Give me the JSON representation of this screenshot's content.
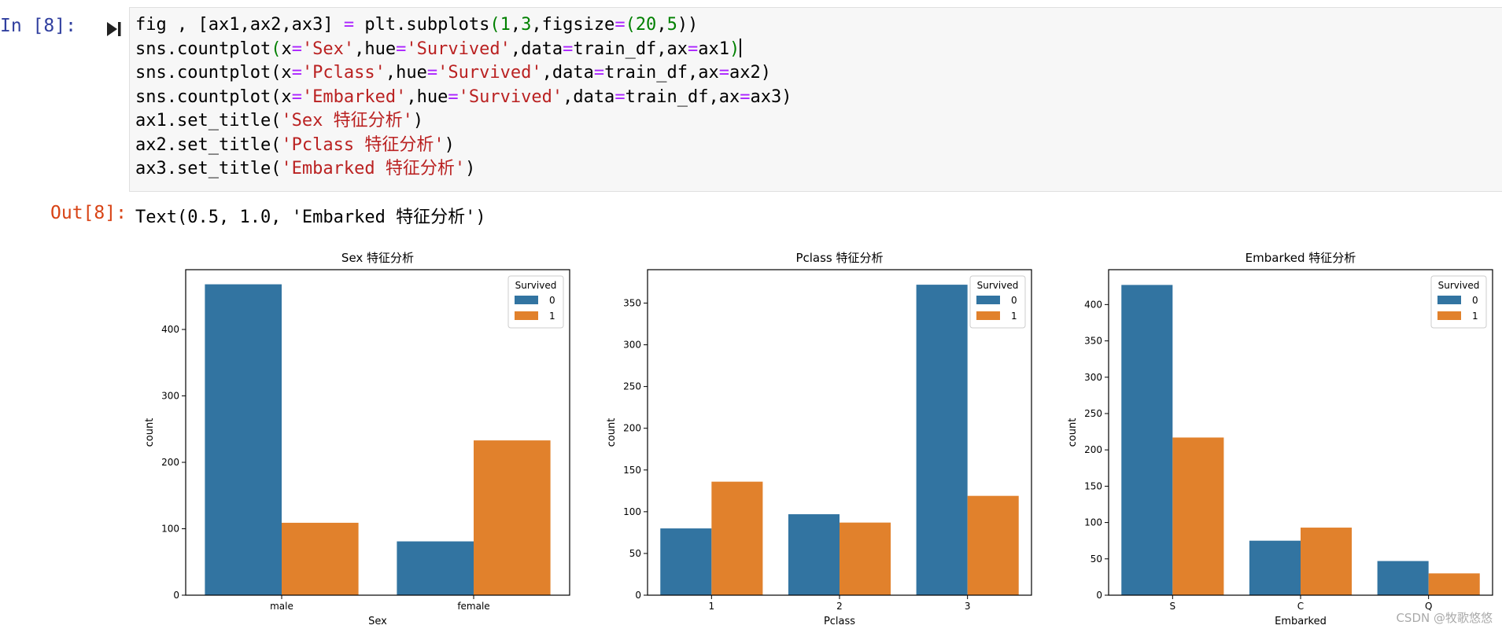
{
  "cell": {
    "in_prompt": "In  [8]:",
    "out_prompt": "Out[8]:",
    "output_text": "Text(0.5, 1.0, 'Embarked 特征分析')",
    "code_lines": [
      [
        {
          "t": "fig , [ax1,ax2,ax3] "
        },
        {
          "t": "=",
          "c": "op"
        },
        {
          "t": " plt.subplots"
        },
        {
          "t": "(",
          "c": "paren"
        },
        {
          "t": "1",
          "c": "num"
        },
        {
          "t": ","
        },
        {
          "t": "3",
          "c": "num"
        },
        {
          "t": ",figsize"
        },
        {
          "t": "=",
          "c": "op"
        },
        {
          "t": "(",
          "c": "paren"
        },
        {
          "t": "20",
          "c": "num"
        },
        {
          "t": ","
        },
        {
          "t": "5",
          "c": "num"
        },
        {
          "t": "))"
        }
      ],
      [
        {
          "t": "sns.countplot"
        },
        {
          "t": "(",
          "c": "paren"
        },
        {
          "t": "x"
        },
        {
          "t": "=",
          "c": "op"
        },
        {
          "t": "'Sex'",
          "c": "str"
        },
        {
          "t": ",hue"
        },
        {
          "t": "=",
          "c": "op"
        },
        {
          "t": "'Survived'",
          "c": "str"
        },
        {
          "t": ",data"
        },
        {
          "t": "=",
          "c": "op"
        },
        {
          "t": "train_df,ax"
        },
        {
          "t": "=",
          "c": "op"
        },
        {
          "t": "ax1"
        },
        {
          "t": ")",
          "c": "paren"
        }
      ],
      [
        {
          "t": "sns.countplot"
        },
        {
          "t": "(x"
        },
        {
          "t": "=",
          "c": "op"
        },
        {
          "t": "'Pclass'",
          "c": "str"
        },
        {
          "t": ",hue"
        },
        {
          "t": "=",
          "c": "op"
        },
        {
          "t": "'Survived'",
          "c": "str"
        },
        {
          "t": ",data"
        },
        {
          "t": "=",
          "c": "op"
        },
        {
          "t": "train_df,ax"
        },
        {
          "t": "=",
          "c": "op"
        },
        {
          "t": "ax2)"
        }
      ],
      [
        {
          "t": "sns.countplot"
        },
        {
          "t": "(x"
        },
        {
          "t": "=",
          "c": "op"
        },
        {
          "t": "'Embarked'",
          "c": "str"
        },
        {
          "t": ",hue"
        },
        {
          "t": "=",
          "c": "op"
        },
        {
          "t": "'Survived'",
          "c": "str"
        },
        {
          "t": ",data"
        },
        {
          "t": "=",
          "c": "op"
        },
        {
          "t": "train_df,ax"
        },
        {
          "t": "=",
          "c": "op"
        },
        {
          "t": "ax3)"
        }
      ],
      [
        {
          "t": "ax1.set_title("
        },
        {
          "t": "'Sex 特征分析'",
          "c": "str"
        },
        {
          "t": ")"
        }
      ],
      [
        {
          "t": "ax2.set_title("
        },
        {
          "t": "'Pclass 特征分析'",
          "c": "str"
        },
        {
          "t": ")"
        }
      ],
      [
        {
          "t": "ax3.set_title("
        },
        {
          "t": "'Embarked 特征分析'",
          "c": "str"
        },
        {
          "t": ")"
        }
      ]
    ]
  },
  "colors": {
    "series0": "#3274a1",
    "series1": "#e1812c"
  },
  "watermark": "CSDN @牧歌悠悠",
  "chart_data": [
    {
      "type": "bar",
      "title": "Sex 特征分析",
      "xlabel": "Sex",
      "ylabel": "count",
      "categories": [
        "male",
        "female"
      ],
      "series": [
        {
          "name": "0",
          "values": [
            468,
            81
          ]
        },
        {
          "name": "1",
          "values": [
            109,
            233
          ]
        }
      ],
      "ylim": [
        0,
        490
      ],
      "yticks": [
        0,
        100,
        200,
        300,
        400
      ],
      "legend": {
        "title": "Survived",
        "placement": "top-right"
      }
    },
    {
      "type": "bar",
      "title": "Pclass 特征分析",
      "xlabel": "Pclass",
      "ylabel": "count",
      "categories": [
        "1",
        "2",
        "3"
      ],
      "series": [
        {
          "name": "0",
          "values": [
            80,
            97,
            372
          ]
        },
        {
          "name": "1",
          "values": [
            136,
            87,
            119
          ]
        }
      ],
      "ylim": [
        0,
        390
      ],
      "yticks": [
        0,
        50,
        100,
        150,
        200,
        250,
        300,
        350
      ],
      "legend": {
        "title": "Survived",
        "placement": "top-right"
      }
    },
    {
      "type": "bar",
      "title": "Embarked 特征分析",
      "xlabel": "Embarked",
      "ylabel": "count",
      "categories": [
        "S",
        "C",
        "Q"
      ],
      "series": [
        {
          "name": "0",
          "values": [
            427,
            75,
            47
          ]
        },
        {
          "name": "1",
          "values": [
            217,
            93,
            30
          ]
        }
      ],
      "ylim": [
        0,
        448
      ],
      "yticks": [
        0,
        50,
        100,
        150,
        200,
        250,
        300,
        350,
        400
      ],
      "legend": {
        "title": "Survived",
        "placement": "top-right"
      }
    }
  ]
}
